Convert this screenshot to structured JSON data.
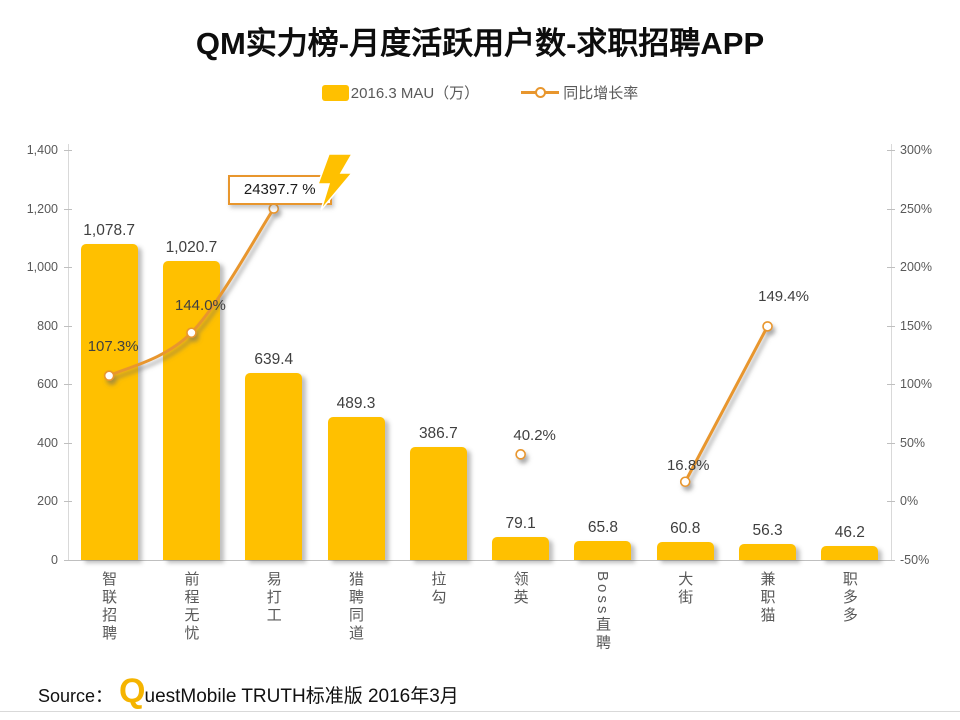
{
  "title": "QM实力榜-月度活跃用户数-求职招聘APP",
  "legend": [
    {
      "label": "2016.3 MAU（万）",
      "type": "bar",
      "color": "#FFC000"
    },
    {
      "label": "同比增长率",
      "type": "line",
      "color": "#E8962D"
    }
  ],
  "chart_data": {
    "type": "bar+line",
    "title": "QM实力榜-月度活跃用户数-求职招聘APP",
    "categories": [
      "智联招聘",
      "前程无忧",
      "易打工",
      "猎聘同道",
      "拉勾",
      "领英",
      "Boss直聘",
      "大街",
      "兼职猫",
      "职多多"
    ],
    "series": [
      {
        "name": "2016.3 MAU（万）",
        "type": "bar",
        "color": "#FFC000",
        "axis": "left",
        "values": [
          1078.7,
          1020.7,
          639.4,
          489.3,
          386.7,
          79.1,
          65.8,
          60.8,
          56.3,
          46.2
        ],
        "labels": [
          "1,078.7",
          "1,020.7",
          "639.4",
          "489.3",
          "386.7",
          "79.1",
          "65.8",
          "60.8",
          "56.3",
          "46.2"
        ]
      },
      {
        "name": "同比增长率",
        "type": "line",
        "color": "#E8962D",
        "axis": "right",
        "values": [
          107.3,
          144.0,
          24397.7,
          null,
          null,
          40.2,
          null,
          16.8,
          149.4,
          null
        ],
        "labels": [
          "107.3%",
          "144.0%",
          "24397.7 %",
          null,
          null,
          "40.2%",
          null,
          "16.8%",
          "149.4%",
          null
        ]
      }
    ],
    "left_axis": {
      "ticks": [
        "1,400",
        "1,200",
        "1,000",
        "800",
        "600",
        "400",
        "200",
        "0"
      ],
      "range": [
        0,
        1400
      ]
    },
    "right_axis": {
      "ticks": [
        "300%",
        "250%",
        "200%",
        "150%",
        "100%",
        "50%",
        "0%",
        "-50%"
      ],
      "range": [
        -50,
        300
      ]
    },
    "annotation": {
      "text": "24397.7 %",
      "target_index": 2,
      "icon": "lightning-icon"
    },
    "grid": false,
    "legend_position": "top"
  },
  "footer": {
    "source_label": "Source：",
    "brand_q": "Q",
    "brand_rest": "uestMobile TRUTH标准版 2016年3月"
  }
}
